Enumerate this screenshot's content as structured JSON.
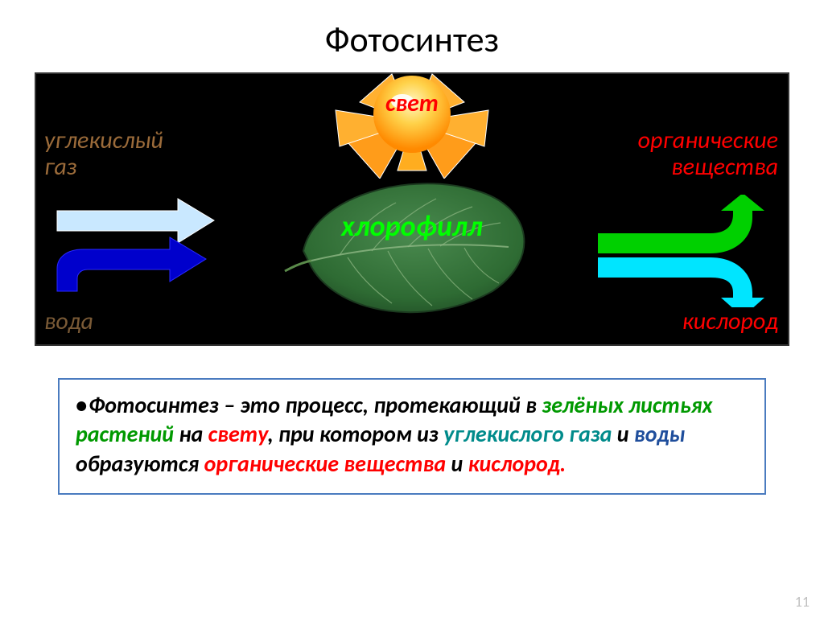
{
  "title": "Фотосинтез",
  "diagram": {
    "bg": "#000000",
    "labels": {
      "light": {
        "text": "свет",
        "color": "#ff0000"
      },
      "co2": {
        "text": "углекислый\nгаз",
        "color": "#9b6b3a"
      },
      "organic": {
        "text": "органические\nвещества",
        "color": "#ff0000"
      },
      "chlorophyll": {
        "text": "хлорофилл",
        "color": "#00ff00"
      },
      "water": {
        "text": "вода",
        "color": "#7a5a36"
      },
      "oxygen": {
        "text": "кислород",
        "color": "#ff0000"
      }
    },
    "sun": {
      "center_color": "#ffb300",
      "core_color": "#ffe36b",
      "petal_outline": "#ffffff",
      "highlight": "#ffffff"
    },
    "leaf": {
      "fill": "#2e6b33",
      "veins": "#9bbf8f",
      "stem": "#5a8a4a"
    },
    "arrows_in": {
      "top_color": "#c9e8ff",
      "bottom_color": "#0000cc"
    },
    "arrows_out": {
      "top_color": "#00e000",
      "bottom_color": "#00e5ff"
    }
  },
  "definition": {
    "bullet": "•",
    "parts": [
      {
        "text": "Фотосинтез – это процесс, протекающий в ",
        "cls": "c-black"
      },
      {
        "text": "зелёных листьях растений ",
        "cls": "c-green"
      },
      {
        "text": "на ",
        "cls": "c-black"
      },
      {
        "text": "свету",
        "cls": "c-red"
      },
      {
        "text": ", при котором из ",
        "cls": "c-black"
      },
      {
        "text": "углекислого газа ",
        "cls": "c-teal"
      },
      {
        "text": "и ",
        "cls": "c-black"
      },
      {
        "text": "воды ",
        "cls": "c-blue"
      },
      {
        "text": "образуются ",
        "cls": "c-black"
      },
      {
        "text": "органические вещества ",
        "cls": "c-red"
      },
      {
        "text": "и ",
        "cls": "c-black"
      },
      {
        "text": "кислород.",
        "cls": "c-red"
      }
    ],
    "border_color": "#4a7bbf"
  },
  "pagenum": "11"
}
